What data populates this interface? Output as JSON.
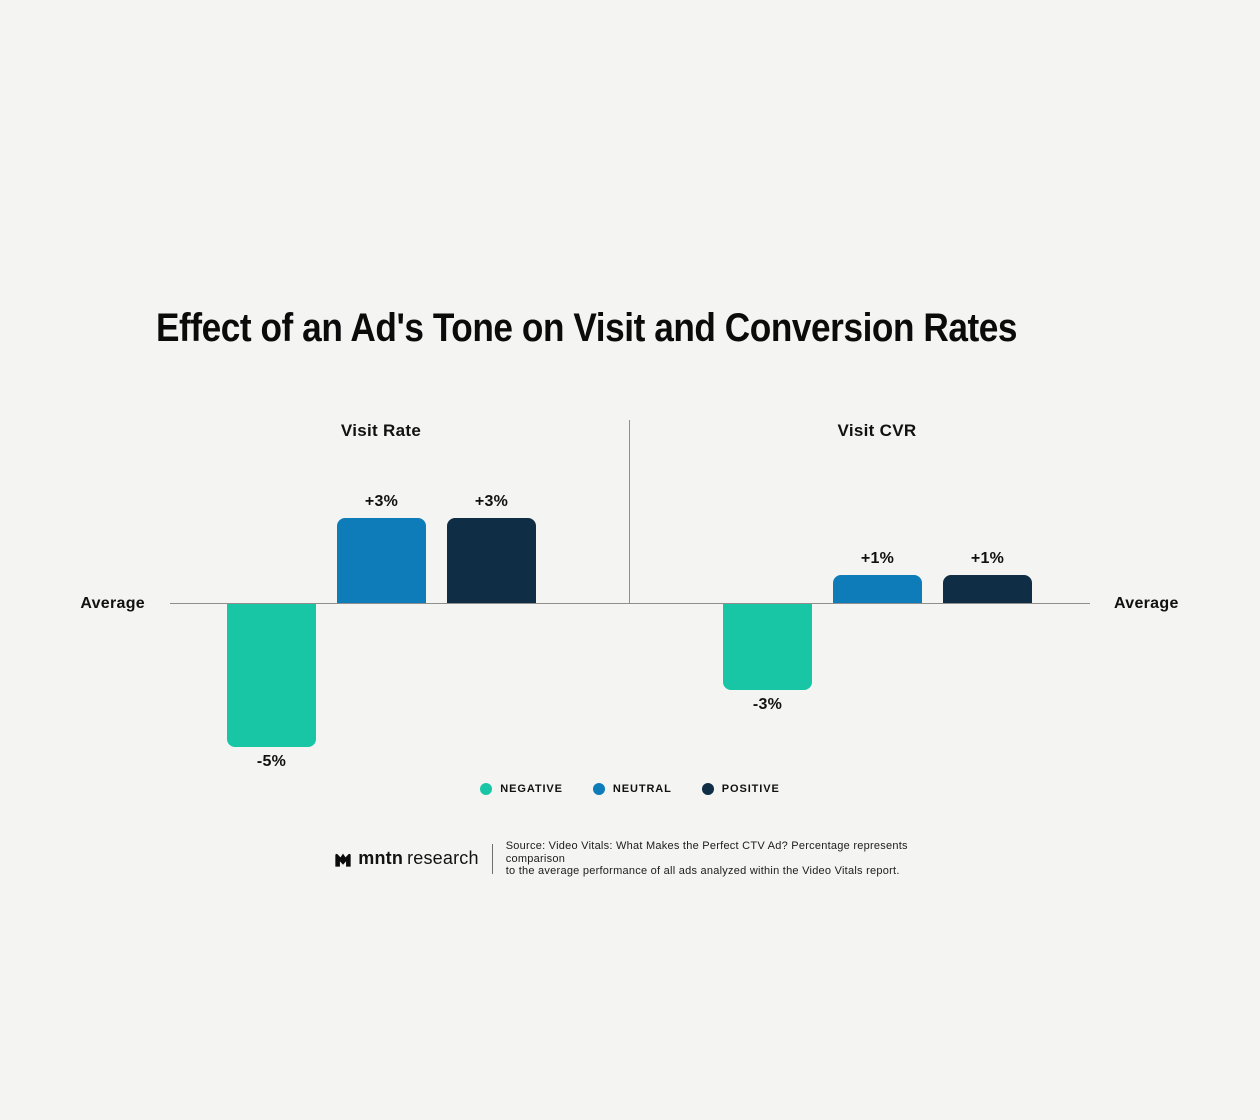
{
  "title": "Effect of an Ad's Tone on Visit and Conversion Rates",
  "colors": {
    "background": "#f4f4f3",
    "axis": "#8e8e8e",
    "negative": "#18c6a5",
    "neutral": "#0e7cb9",
    "positive": "#0f2d44"
  },
  "chart_data": {
    "type": "bar",
    "layout": "two-panel diverging bar chart around a shared baseline",
    "baseline_label": "Average",
    "grid": false,
    "legend_position": "bottom",
    "categories": [
      "Negative",
      "Neutral",
      "Positive"
    ],
    "panels": [
      {
        "title": "Visit Rate",
        "values": [
          -5,
          3,
          3
        ],
        "labels": [
          "-5%",
          "+3%",
          "+3%"
        ]
      },
      {
        "title": "Visit CVR",
        "values": [
          -3,
          1,
          1
        ],
        "labels": [
          "-3%",
          "+1%",
          "+1%"
        ]
      }
    ],
    "legend": [
      {
        "label": "NEGATIVE",
        "color": "#18c6a5"
      },
      {
        "label": "NEUTRAL",
        "color": "#0e7cb9"
      },
      {
        "label": "POSITIVE",
        "color": "#0f2d44"
      }
    ],
    "value_unit": "%",
    "ylim": [
      -5,
      3
    ]
  },
  "axis": {
    "left_label": "Average",
    "right_label": "Average"
  },
  "footer": {
    "brand_bold": "mntn",
    "brand_light": "research",
    "source_line1": "Source: Video Vitals: What Makes the Perfect CTV Ad? Percentage represents comparison",
    "source_line2": "to the average performance of all ads analyzed within the Video Vitals report."
  }
}
